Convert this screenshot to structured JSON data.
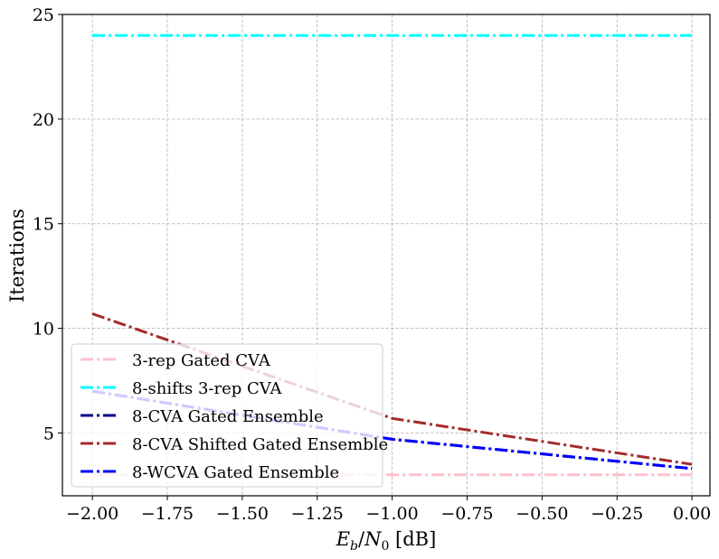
{
  "chart_data": {
    "type": "line",
    "xlabel": "E_b/N_0 [dB]",
    "xlabel_parts": {
      "E": "E",
      "b": "b",
      "slash": "/",
      "N": "N",
      "zero": "0",
      "unit": " [dB]"
    },
    "ylabel": "Iterations",
    "xlim": [
      -2.1,
      0.06
    ],
    "ylim": [
      2.0,
      25.0
    ],
    "xticks": [
      -2.0,
      -1.75,
      -1.5,
      -1.25,
      -1.0,
      -0.75,
      -0.5,
      -0.25,
      0.0
    ],
    "xtick_labels": [
      "−2.00",
      "−1.75",
      "−1.50",
      "−1.25",
      "−1.00",
      "−0.75",
      "−0.50",
      "−0.25",
      "0.00"
    ],
    "yticks": [
      5,
      10,
      15,
      20,
      25
    ],
    "ytick_labels": [
      "5",
      "10",
      "15",
      "20",
      "25"
    ],
    "grid": true,
    "legend_position": "lower-left",
    "x": [
      -2.0,
      -1.0,
      0.0
    ],
    "series": [
      {
        "name": "3-rep Gated CVA",
        "color": "#ffc0cb",
        "style": "dash-dot",
        "values": [
          3.0,
          3.0,
          3.0
        ]
      },
      {
        "name": "8-shifts 3-rep CVA",
        "color": "#00ffff",
        "style": "dash-dot",
        "values": [
          24.0,
          24.0,
          24.0
        ]
      },
      {
        "name": "8-CVA Gated Ensemble",
        "color": "#00008b",
        "style": "dash-dot",
        "values": [
          7.0,
          4.7,
          3.3
        ]
      },
      {
        "name": "8-CVA Shifted Gated Ensemble",
        "color": "#a52a2a",
        "style": "dash-dot",
        "values": [
          10.7,
          5.7,
          3.5
        ]
      },
      {
        "name": "8-WCVA Gated Ensemble",
        "color": "#0000ff",
        "style": "dash-dot",
        "values": [
          7.0,
          4.7,
          3.3
        ]
      }
    ]
  }
}
